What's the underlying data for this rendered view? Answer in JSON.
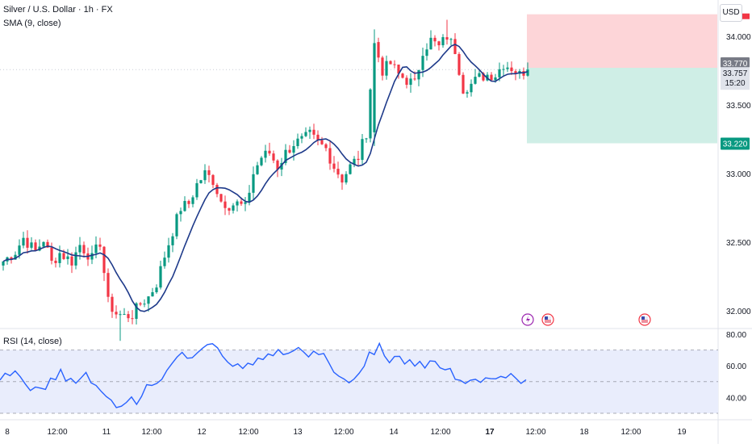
{
  "header": {
    "symbol_title": "Silver / U.S. Dollar · 1h · FX",
    "indicator": "SMA (9, close)",
    "currency_button": "USD"
  },
  "rsi_panel": {
    "label": "RSI (14, close)",
    "ticks": [
      "80.00",
      "60.00",
      "40.00"
    ]
  },
  "price_axis": {
    "ticks": [
      "34.000",
      "33.500",
      "33.000",
      "32.500",
      "32.000"
    ]
  },
  "price_tags": {
    "upper": "33.770",
    "current": "33.757",
    "countdown": "15:20",
    "lower": "33.220"
  },
  "time_axis": [
    "8",
    "12:00",
    "11",
    "12:00",
    "12",
    "12:00",
    "13",
    "12:00",
    "14",
    "12:00",
    "17",
    "12:00",
    "18",
    "12:00",
    "19"
  ],
  "colors": {
    "up": "#089981",
    "down": "#f23645",
    "sma": "#2962ff",
    "rsi": "#2962ff",
    "stop_zone": "#fdd5d8",
    "target_zone": "#cfeee6",
    "rsi_band": "#e9edfc"
  },
  "event_icons": [
    "lightning-icon",
    "us-flag-icon",
    "us-flag-icon"
  ],
  "chart_data": [
    {
      "type": "candlestick",
      "title": "Silver / U.S. Dollar · 1h · FX",
      "indicator": "SMA (9, close)",
      "ylim": [
        31.75,
        34.2
      ],
      "y_ticks": [
        34.0,
        33.5,
        33.0,
        32.5,
        32.0
      ],
      "x_tick_labels": [
        "8",
        "12:00",
        "11",
        "12:00",
        "12",
        "12:00",
        "13",
        "12:00",
        "14",
        "12:00",
        "17",
        "12:00",
        "18",
        "12:00",
        "19"
      ],
      "anchors": [
        [
          0,
          32.36
        ],
        [
          3,
          32.43
        ],
        [
          5,
          32.53
        ],
        [
          8,
          32.43
        ],
        [
          10,
          32.52
        ],
        [
          12,
          32.35
        ],
        [
          14,
          32.42
        ],
        [
          17,
          32.36
        ],
        [
          19,
          32.48
        ],
        [
          22,
          32.38
        ],
        [
          24,
          32.5
        ],
        [
          26,
          32.06
        ],
        [
          28,
          31.98
        ],
        [
          30,
          31.96
        ],
        [
          32,
          31.97
        ],
        [
          34,
          32.05
        ],
        [
          36,
          32.1
        ],
        [
          38,
          32.2
        ],
        [
          40,
          32.4
        ],
        [
          42,
          32.58
        ],
        [
          44,
          32.75
        ],
        [
          46,
          32.78
        ],
        [
          48,
          32.92
        ],
        [
          50,
          33.0
        ],
        [
          52,
          32.95
        ],
        [
          54,
          32.8
        ],
        [
          56,
          32.77
        ],
        [
          58,
          32.78
        ],
        [
          60,
          32.75
        ],
        [
          62,
          33.0
        ],
        [
          64,
          33.12
        ],
        [
          66,
          33.15
        ],
        [
          68,
          33.05
        ],
        [
          70,
          33.15
        ],
        [
          72,
          33.22
        ],
        [
          74,
          33.24
        ],
        [
          76,
          33.28
        ],
        [
          78,
          33.22
        ],
        [
          80,
          33.18
        ],
        [
          82,
          33.05
        ],
        [
          84,
          32.96
        ],
        [
          86,
          33.05
        ],
        [
          88,
          33.12
        ],
        [
          90,
          33.3
        ],
        [
          92,
          33.95
        ],
        [
          94,
          33.75
        ],
        [
          96,
          33.8
        ],
        [
          98,
          33.72
        ],
        [
          100,
          33.68
        ],
        [
          102,
          33.65
        ],
        [
          104,
          33.9
        ],
        [
          106,
          33.97
        ],
        [
          108,
          33.92
        ],
        [
          110,
          34.0
        ],
        [
          112,
          33.9
        ],
        [
          114,
          33.62
        ],
        [
          116,
          33.65
        ],
        [
          118,
          33.7
        ],
        [
          120,
          33.72
        ],
        [
          122,
          33.72
        ],
        [
          124,
          33.8
        ],
        [
          126,
          33.77
        ],
        [
          128,
          33.72
        ],
        [
          130,
          33.77
        ],
        [
          131,
          33.757
        ]
      ],
      "last_close": 33.757,
      "position": {
        "entry": 33.77,
        "stop_top": 34.16,
        "target": 33.22
      }
    },
    {
      "type": "line",
      "title": "RSI (14, close)",
      "ylim": [
        30,
        83
      ],
      "y_ticks": [
        80,
        60,
        40
      ],
      "bands": [
        70,
        50,
        30
      ],
      "values": [
        51.0,
        55.3,
        53.8,
        56.8,
        53.1,
        48.5,
        44.4,
        46.6,
        45.9,
        45.1,
        52.2,
        51.2,
        57.8,
        50.4,
        52.1,
        49.0,
        52.3,
        55.8,
        49.3,
        47.6,
        43.9,
        40.6,
        38.3,
        33.6,
        34.5,
        36.9,
        40.3,
        35.6,
        40.7,
        48.1,
        47.6,
        48.9,
        51.5,
        57.2,
        61.5,
        65.5,
        68.5,
        64.8,
        65.1,
        68.1,
        71.0,
        73.4,
        74.0,
        71.4,
        66.1,
        62.4,
        59.7,
        61.3,
        58.3,
        61.7,
        60.6,
        64.9,
        64.0,
        67.5,
        66.4,
        70.3,
        67.1,
        67.9,
        69.5,
        71.6,
        68.8,
        65.6,
        69.3,
        67.1,
        67.8,
        62.0,
        55.9,
        53.4,
        51.7,
        49.3,
        51.7,
        55.3,
        59.8,
        68.7,
        67.1,
        74.2,
        66.3,
        62.0,
        65.9,
        66.0,
        61.1,
        63.9,
        59.8,
        62.8,
        58.6,
        63.1,
        62.8,
        58.7,
        57.5,
        58.3,
        51.5,
        50.8,
        48.9,
        50.9,
        51.5,
        49.5,
        52.4,
        51.9,
        51.8,
        53.3,
        52.4,
        55.1,
        52.1,
        48.9,
        51.2
      ]
    }
  ]
}
